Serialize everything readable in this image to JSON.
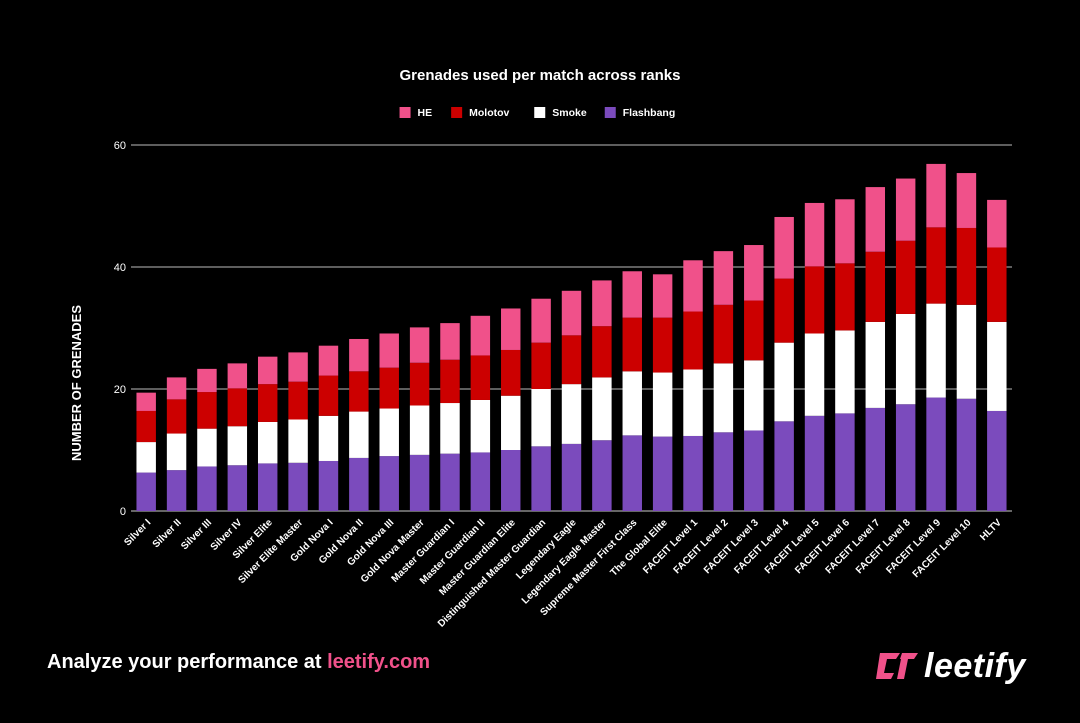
{
  "chart_data": {
    "type": "bar",
    "stacked": true,
    "title": "Grenades used per match across ranks",
    "ylabel": "NUMBER OF GRENADES",
    "xlabel": "",
    "ylim": [
      0,
      60
    ],
    "yticks": [
      "0",
      "20",
      "40",
      "60"
    ],
    "grid": true,
    "legend_position": "top",
    "categories": [
      "Silver I",
      "Silver II",
      "Silver III",
      "Silver IV",
      "Silver Elite",
      "Silver Elite Master",
      "Gold Nova I",
      "Gold Nova II",
      "Gold Nova III",
      "Gold Nova Master",
      "Master Guardian I",
      "Master Guardian II",
      "Master Guardian Elite",
      "Distinguished Master Guardian",
      "Legendary Eagle",
      "Legendary Eagle Master",
      "Supreme Master First Class",
      "The Global Elite",
      "FACEIT Level 1",
      "FACEIT Level 2",
      "FACEIT Level 3",
      "FACEIT Level 4",
      "FACEIT Level 5",
      "FACEIT Level 6",
      "FACEIT Level 7",
      "FACEIT Level 8",
      "FACEIT Level 9",
      "FACEIT Level 10",
      "HLTV"
    ],
    "series": [
      {
        "name": "Flashbang",
        "color": "#7b4bbd",
        "values": [
          6.3,
          6.7,
          7.3,
          7.5,
          7.8,
          7.9,
          8.2,
          8.7,
          9.0,
          9.2,
          9.4,
          9.6,
          10.0,
          10.6,
          11.0,
          11.6,
          12.4,
          12.2,
          12.3,
          12.9,
          13.2,
          14.7,
          15.6,
          16.0,
          16.9,
          17.5,
          18.6,
          18.4,
          16.4
        ]
      },
      {
        "name": "Smoke",
        "color": "#ffffff",
        "values": [
          5.0,
          6.0,
          6.2,
          6.4,
          6.8,
          7.1,
          7.4,
          7.6,
          7.8,
          8.1,
          8.3,
          8.6,
          8.9,
          9.4,
          9.8,
          10.3,
          10.5,
          10.5,
          10.9,
          11.3,
          11.5,
          12.9,
          13.5,
          13.6,
          14.1,
          14.8,
          15.4,
          15.4,
          14.6
        ]
      },
      {
        "name": "Molotov",
        "color": "#cc0000",
        "values": [
          5.1,
          5.6,
          6.0,
          6.2,
          6.2,
          6.2,
          6.6,
          6.6,
          6.7,
          7.0,
          7.1,
          7.3,
          7.5,
          7.6,
          8.0,
          8.4,
          8.8,
          9.0,
          9.5,
          9.6,
          9.8,
          10.5,
          11.0,
          11.0,
          11.5,
          12.0,
          12.5,
          12.6,
          12.2
        ]
      },
      {
        "name": "HE",
        "color": "#f0518a",
        "values": [
          3.0,
          3.6,
          3.8,
          4.1,
          4.5,
          4.8,
          4.9,
          5.3,
          5.6,
          5.8,
          6.0,
          6.5,
          6.8,
          7.2,
          7.3,
          7.5,
          7.6,
          7.1,
          8.4,
          8.8,
          9.1,
          10.1,
          10.4,
          10.5,
          10.6,
          10.2,
          10.4,
          9.0,
          7.8
        ]
      }
    ],
    "legend_order": [
      "HE",
      "Molotov",
      "Smoke",
      "Flashbang"
    ]
  },
  "footer": {
    "prefix": "Analyze your performance at ",
    "link": "leetify.com"
  },
  "brand": {
    "name": "leetify",
    "logo_icon": "leetify-logo-icon",
    "accent_color": "#f0518a"
  }
}
